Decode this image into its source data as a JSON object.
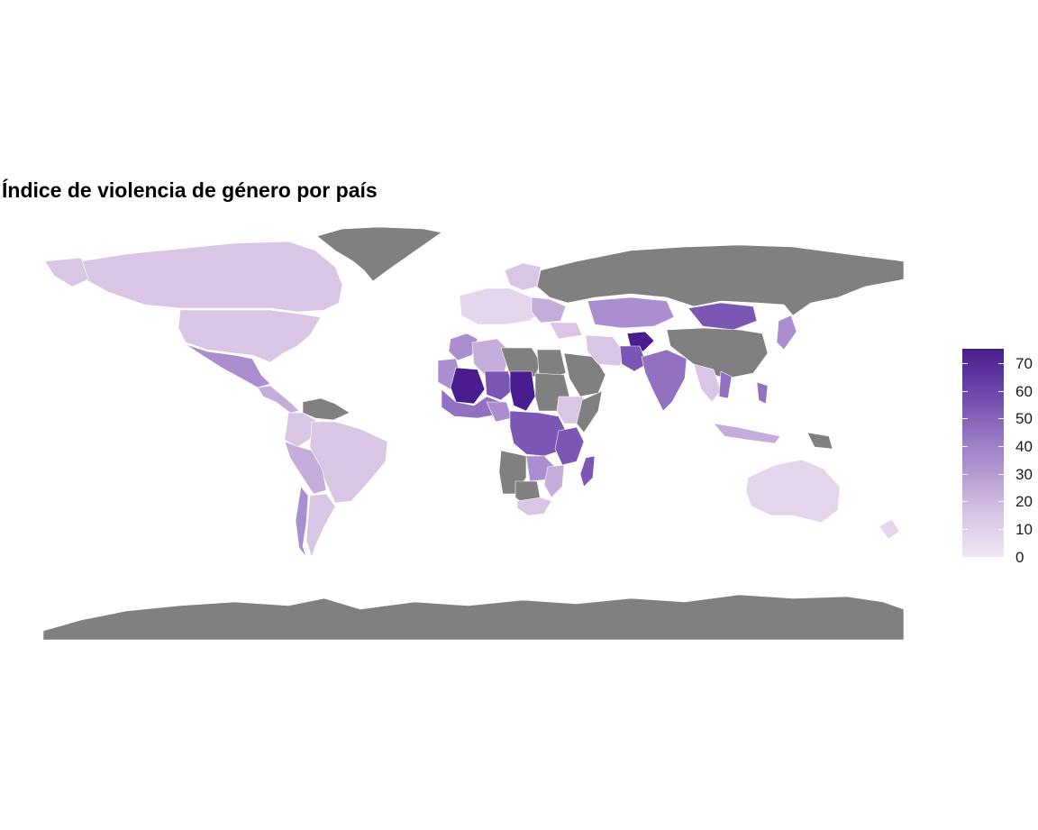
{
  "title": "Índice de violencia de género por país",
  "legend": {
    "labels": [
      "70",
      "60",
      "50",
      "40",
      "30",
      "20",
      "10",
      "0"
    ],
    "min": 0,
    "max": 75,
    "colors": [
      "#efe8f4",
      "#d8c6e4",
      "#b59bd1",
      "#9272c0",
      "#6b45aa",
      "#4a1d8e"
    ]
  },
  "colors": {
    "no_data": "#808080",
    "c0": "#efe8f4",
    "c10": "#e4d7ec",
    "c17": "#d8c6e4",
    "c25": "#c5addb",
    "c35": "#ab8ecf",
    "c45": "#9272c0",
    "c55": "#7b56b4",
    "c70": "#4a1d8e"
  }
}
